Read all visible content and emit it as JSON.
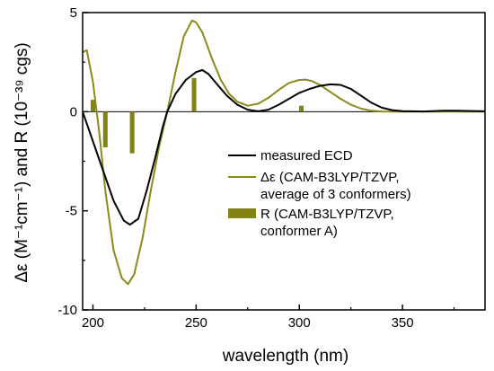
{
  "chart_data": {
    "type": "line",
    "xlabel": "wavelength (nm)",
    "ylabel": "Δε (M⁻¹cm⁻¹) and R (10⁻³⁹ cgs)",
    "xlim": [
      195,
      390
    ],
    "ylim": [
      -10,
      5
    ],
    "x_ticks": [
      200,
      250,
      300,
      350
    ],
    "y_ticks": [
      5,
      0,
      -5,
      -10
    ],
    "grid": false,
    "legend_position": "center-right",
    "colors": {
      "measured": "#000000",
      "calc": "#8b8b1a",
      "bar": "#838312"
    },
    "series": [
      {
        "name": "measured ECD",
        "points": [
          [
            195,
            0
          ],
          [
            198,
            -0.9
          ],
          [
            200,
            -1.5
          ],
          [
            205,
            -3.0
          ],
          [
            210,
            -4.5
          ],
          [
            215,
            -5.5
          ],
          [
            218,
            -5.7
          ],
          [
            222,
            -5.4
          ],
          [
            226,
            -4.0
          ],
          [
            230,
            -2.4
          ],
          [
            234,
            -0.7
          ],
          [
            236,
            0
          ],
          [
            240,
            0.9
          ],
          [
            245,
            1.6
          ],
          [
            250,
            2.0
          ],
          [
            253,
            2.1
          ],
          [
            256,
            1.9
          ],
          [
            260,
            1.4
          ],
          [
            265,
            0.8
          ],
          [
            270,
            0.35
          ],
          [
            275,
            0.1
          ],
          [
            280,
            0.02
          ],
          [
            285,
            0.1
          ],
          [
            290,
            0.35
          ],
          [
            295,
            0.65
          ],
          [
            300,
            0.95
          ],
          [
            305,
            1.15
          ],
          [
            310,
            1.3
          ],
          [
            315,
            1.38
          ],
          [
            320,
            1.35
          ],
          [
            325,
            1.15
          ],
          [
            330,
            0.8
          ],
          [
            335,
            0.45
          ],
          [
            340,
            0.2
          ],
          [
            345,
            0.08
          ],
          [
            350,
            0.03
          ],
          [
            360,
            0.01
          ],
          [
            370,
            0.05
          ],
          [
            375,
            0.05
          ],
          [
            390,
            0.02
          ]
        ]
      },
      {
        "name": "Δε (CAM-B3LYP/TZVP, average of 3 conformers)",
        "points": [
          [
            195,
            3.0
          ],
          [
            197,
            3.1
          ],
          [
            200,
            1.5
          ],
          [
            203,
            -1.0
          ],
          [
            206,
            -4.0
          ],
          [
            210,
            -7.0
          ],
          [
            214,
            -8.4
          ],
          [
            217,
            -8.7
          ],
          [
            220,
            -8.2
          ],
          [
            224,
            -6.4
          ],
          [
            228,
            -4.0
          ],
          [
            232,
            -1.8
          ],
          [
            236,
            0
          ],
          [
            240,
            2.0
          ],
          [
            244,
            3.8
          ],
          [
            248,
            4.6
          ],
          [
            250,
            4.5
          ],
          [
            253,
            4.0
          ],
          [
            258,
            2.6
          ],
          [
            262,
            1.6
          ],
          [
            266,
            0.9
          ],
          [
            270,
            0.5
          ],
          [
            275,
            0.3
          ],
          [
            280,
            0.4
          ],
          [
            285,
            0.7
          ],
          [
            290,
            1.1
          ],
          [
            295,
            1.45
          ],
          [
            300,
            1.6
          ],
          [
            303,
            1.62
          ],
          [
            306,
            1.55
          ],
          [
            310,
            1.35
          ],
          [
            315,
            1.0
          ],
          [
            320,
            0.65
          ],
          [
            325,
            0.35
          ],
          [
            330,
            0.15
          ],
          [
            335,
            0.05
          ],
          [
            340,
            0.01
          ],
          [
            345,
            0
          ],
          [
            390,
            0
          ]
        ]
      }
    ],
    "bars": {
      "name": "R (CAM-B3LYP/TZVP, conformer A)",
      "x": [
        200,
        206,
        219,
        249,
        301
      ],
      "values": [
        0.6,
        -1.8,
        -2.1,
        1.7,
        0.3
      ],
      "width_nm": 2.2
    },
    "legend": [
      {
        "label_lines": [
          "measured ECD"
        ],
        "kind": "line",
        "color_key": "measured"
      },
      {
        "label_lines": [
          "Δε (CAM-B3LYP/TZVP,",
          "average of 3 conformers)"
        ],
        "kind": "line",
        "color_key": "calc"
      },
      {
        "label_lines": [
          "R (CAM-B3LYP/TZVP,",
          "conformer A)"
        ],
        "kind": "bar",
        "color_key": "bar"
      }
    ]
  }
}
